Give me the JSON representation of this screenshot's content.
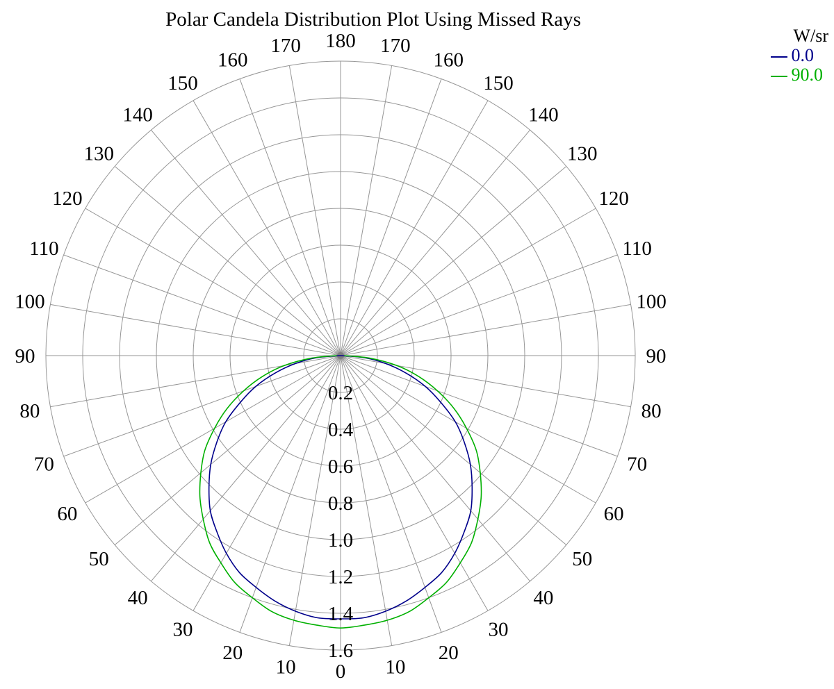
{
  "chart_data": {
    "type": "polar-line",
    "title": "Polar Candela Distribution Plot Using Missed Rays",
    "units_label": "W/sr",
    "angle_step_deg": 10,
    "angle_labels_deg": [
      0,
      10,
      20,
      30,
      40,
      50,
      60,
      70,
      80,
      90,
      100,
      110,
      120,
      130,
      140,
      150,
      160,
      170,
      180
    ],
    "radial_ticks": [
      0.2,
      0.4,
      0.6,
      0.8,
      1.0,
      1.2,
      1.4,
      1.6
    ],
    "rmax": 1.6,
    "grid_color": "#969696",
    "center_marker_color": "#7f7f7f",
    "axis_text_color": "#000000",
    "series": [
      {
        "name": "0.0",
        "color": "#00008B",
        "angles_deg": [
          -90,
          -85,
          -80,
          -75,
          -70,
          -65,
          -60,
          -55,
          -50,
          -45,
          -40,
          -35,
          -30,
          -25,
          -20,
          -15,
          -10,
          -5,
          0,
          5,
          10,
          15,
          20,
          25,
          30,
          35,
          40,
          45,
          50,
          55,
          60,
          65,
          70,
          75,
          80,
          85,
          90
        ],
        "values": [
          0.0,
          0.13,
          0.25,
          0.37,
          0.49,
          0.6,
          0.72,
          0.82,
          0.92,
          1.01,
          1.1,
          1.17,
          1.24,
          1.3,
          1.34,
          1.38,
          1.41,
          1.43,
          1.43,
          1.43,
          1.41,
          1.38,
          1.34,
          1.3,
          1.24,
          1.17,
          1.1,
          1.01,
          0.92,
          0.82,
          0.72,
          0.6,
          0.49,
          0.37,
          0.25,
          0.13,
          0.0
        ]
      },
      {
        "name": "90.0",
        "color": "#00B000",
        "angles_deg": [
          -90,
          -85,
          -80,
          -75,
          -70,
          -65,
          -60,
          -55,
          -50,
          -45,
          -40,
          -35,
          -30,
          -25,
          -20,
          -15,
          -10,
          -5,
          0,
          5,
          10,
          15,
          20,
          25,
          30,
          35,
          40,
          45,
          50,
          55,
          60,
          65,
          70,
          75,
          80,
          85,
          90
        ],
        "values": [
          0.02,
          0.16,
          0.31,
          0.44,
          0.56,
          0.68,
          0.79,
          0.9,
          0.99,
          1.08,
          1.16,
          1.24,
          1.3,
          1.36,
          1.4,
          1.44,
          1.46,
          1.47,
          1.48,
          1.47,
          1.46,
          1.44,
          1.4,
          1.36,
          1.3,
          1.24,
          1.16,
          1.08,
          0.99,
          0.9,
          0.79,
          0.68,
          0.56,
          0.44,
          0.31,
          0.16,
          0.02
        ]
      }
    ]
  }
}
